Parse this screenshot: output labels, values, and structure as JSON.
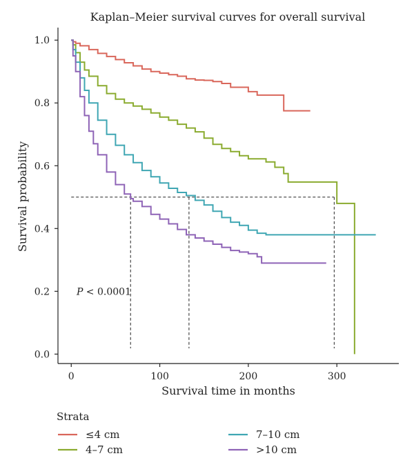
{
  "chart_data": {
    "type": "line",
    "title": "Kaplan–Meier survival curves for overall survival",
    "xlabel": "Survival time in months",
    "ylabel": "Survival probability",
    "xlim": [
      -15,
      370
    ],
    "ylim": [
      -0.03,
      1.04
    ],
    "x_ticks": [
      0,
      100,
      200,
      300
    ],
    "y_ticks": [
      0.0,
      0.2,
      0.4,
      0.6,
      0.8,
      1.0
    ],
    "y_tick_labels": [
      "0.0",
      "0.2",
      "0.4",
      "0.6",
      "0.8",
      "1.0"
    ],
    "annotation": {
      "p_label": "P",
      "p_text": " < 0.0001",
      "x": 6,
      "y": 0.2
    },
    "median_line": {
      "y": 0.5,
      "x_start": 0,
      "x_end": 297,
      "drops": [
        67,
        133,
        297
      ]
    },
    "legend": {
      "title": "Strata",
      "position": "bottom"
    },
    "series": [
      {
        "name": "≤4 cm",
        "color": "#d9665a",
        "x": [
          0,
          2,
          5,
          10,
          20,
          30,
          40,
          50,
          60,
          70,
          80,
          90,
          100,
          110,
          120,
          130,
          140,
          150,
          160,
          170,
          180,
          190,
          200,
          210,
          220,
          230,
          238,
          240,
          250,
          260,
          270
        ],
        "y": [
          1.0,
          0.995,
          0.99,
          0.982,
          0.97,
          0.958,
          0.948,
          0.938,
          0.928,
          0.918,
          0.908,
          0.9,
          0.895,
          0.89,
          0.885,
          0.877,
          0.873,
          0.872,
          0.868,
          0.862,
          0.85,
          0.85,
          0.836,
          0.825,
          0.825,
          0.825,
          0.825,
          0.775,
          0.775,
          0.775,
          0.775
        ]
      },
      {
        "name": "4–7 cm",
        "color": "#8aab2f",
        "x": [
          0,
          2,
          5,
          10,
          15,
          20,
          30,
          40,
          50,
          60,
          70,
          80,
          90,
          100,
          110,
          120,
          130,
          140,
          150,
          160,
          170,
          180,
          190,
          200,
          210,
          220,
          230,
          240,
          245,
          250,
          260,
          270,
          280,
          290,
          297,
          300,
          310,
          318,
          320
        ],
        "y": [
          1.0,
          0.985,
          0.96,
          0.93,
          0.905,
          0.885,
          0.855,
          0.83,
          0.812,
          0.8,
          0.79,
          0.78,
          0.768,
          0.755,
          0.745,
          0.732,
          0.72,
          0.708,
          0.688,
          0.668,
          0.655,
          0.645,
          0.632,
          0.622,
          0.622,
          0.612,
          0.595,
          0.575,
          0.548,
          0.548,
          0.548,
          0.548,
          0.548,
          0.548,
          0.548,
          0.48,
          0.48,
          0.48,
          0.0
        ]
      },
      {
        "name": "7–10 cm",
        "color": "#3fa6b3",
        "x": [
          0,
          2,
          5,
          10,
          15,
          20,
          30,
          40,
          50,
          60,
          70,
          80,
          90,
          100,
          110,
          120,
          130,
          140,
          150,
          160,
          170,
          180,
          190,
          200,
          210,
          220,
          240,
          260,
          280,
          300,
          320,
          344
        ],
        "y": [
          1.0,
          0.97,
          0.93,
          0.88,
          0.84,
          0.8,
          0.745,
          0.7,
          0.665,
          0.635,
          0.61,
          0.585,
          0.565,
          0.545,
          0.528,
          0.515,
          0.505,
          0.49,
          0.475,
          0.455,
          0.435,
          0.42,
          0.41,
          0.395,
          0.385,
          0.38,
          0.38,
          0.38,
          0.38,
          0.38,
          0.38,
          0.38
        ]
      },
      {
        "name": ">10 cm",
        "color": "#8e63b6",
        "x": [
          0,
          2,
          5,
          10,
          15,
          20,
          25,
          30,
          40,
          50,
          60,
          67,
          70,
          80,
          90,
          100,
          110,
          120,
          130,
          140,
          150,
          160,
          170,
          180,
          190,
          200,
          210,
          215,
          230,
          250,
          270,
          288
        ],
        "y": [
          1.0,
          0.95,
          0.9,
          0.82,
          0.76,
          0.71,
          0.67,
          0.635,
          0.58,
          0.54,
          0.51,
          0.495,
          0.487,
          0.47,
          0.445,
          0.43,
          0.415,
          0.397,
          0.38,
          0.37,
          0.36,
          0.35,
          0.34,
          0.33,
          0.325,
          0.32,
          0.31,
          0.29,
          0.29,
          0.29,
          0.29,
          0.29
        ]
      }
    ]
  }
}
